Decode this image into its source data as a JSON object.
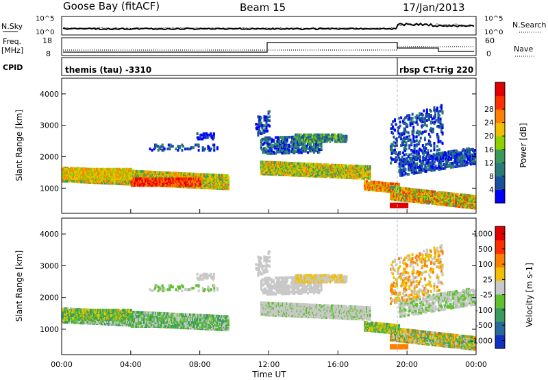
{
  "header": {
    "station": "Goose Bay (fitACF)",
    "beam": "Beam 15",
    "date": "17/Jan/2013"
  },
  "top_panels": {
    "nsky": {
      "label": "N.Sky",
      "tick_top": "10^5",
      "tick_bottom": "10^0",
      "right_label": "N.Search",
      "right_tick_top": "10^5",
      "right_tick_bottom": "10^0"
    },
    "freq": {
      "label_line1": "Freq.",
      "label_line2": "[MHz]",
      "tick_top": "18",
      "tick_bottom": "8",
      "right_label": "Nave",
      "right_tick_top": "60",
      "right_tick_bottom": "0"
    },
    "cpid": {
      "label": "CPID",
      "segments": [
        {
          "text": "themis (tau) -3310"
        },
        {
          "text": "rbsp CT-trig 220"
        }
      ]
    }
  },
  "chart_data": [
    {
      "type": "heatmap",
      "ylabel": "Slant Range [km]",
      "ylim": [
        200,
        4500
      ],
      "yticks": [
        "1000",
        "2000",
        "3000",
        "4000"
      ],
      "xlim": [
        0,
        24
      ],
      "xticks": [
        "00:00",
        "04:00",
        "08:00",
        "12:00",
        "16:00",
        "20:00",
        "00:00"
      ],
      "colorbar": {
        "label": "Power [dB]",
        "ticks": [
          "4",
          "8",
          "12",
          "16",
          "20",
          "24",
          "28"
        ],
        "colors": [
          "#0000ff",
          "#1a4fa0",
          "#2a7a7a",
          "#3a9a5a",
          "#8fd000",
          "#f0c000",
          "#ff8000",
          "#ff3000",
          "#e00000"
        ]
      }
    },
    {
      "type": "heatmap",
      "ylabel": "Slant Range [km]",
      "ylim": [
        200,
        4500
      ],
      "yticks": [
        "1000",
        "2000",
        "3000",
        "4000"
      ],
      "xlim": [
        0,
        24
      ],
      "xticks": [
        "00:00",
        "04:00",
        "08:00",
        "12:00",
        "16:00",
        "20:00",
        "00:00"
      ],
      "xlabel": "Time UT",
      "colorbar": {
        "label": "Velocity [m s-1]",
        "ticks": [
          "1000",
          "500",
          "100",
          "25",
          "-25",
          "-100",
          "-500",
          "-1000"
        ],
        "colors": [
          "#1030c0",
          "#2a6a9a",
          "#3a9a60",
          "#60c030",
          "#c8c8c8",
          "#f0c000",
          "#ff8000",
          "#ff3000",
          "#e00000"
        ]
      }
    }
  ]
}
